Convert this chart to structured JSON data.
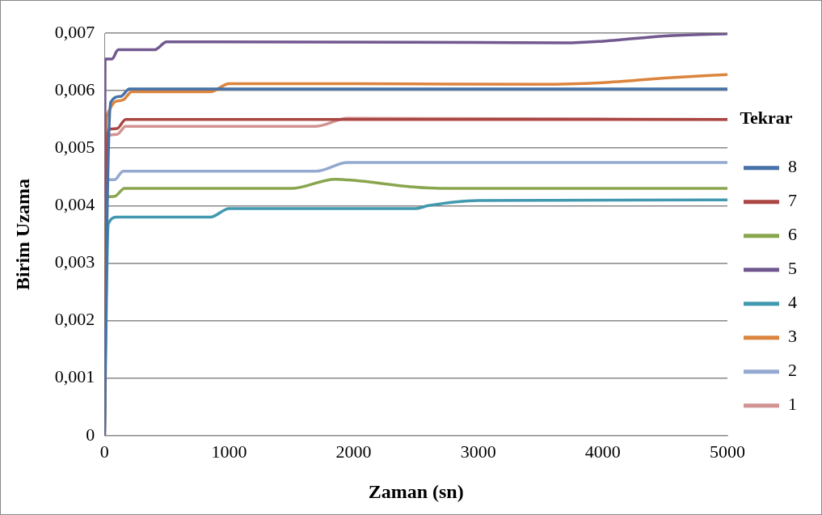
{
  "chart_data": {
    "type": "line",
    "xlabel": "Zaman (sn)",
    "ylabel": "Birim Uzama",
    "legend_title": "Tekrar",
    "legend": "right",
    "grid": "y",
    "marker": "none",
    "line_style": "solid",
    "xlim": [
      0,
      5000
    ],
    "xticks": [
      0,
      1000,
      2000,
      3000,
      4000,
      5000
    ],
    "ylim": [
      0,
      0.007
    ],
    "yticks": [
      0,
      {
        "value": 0.001,
        "label": "0,001"
      },
      {
        "value": 0.002,
        "label": "0,002"
      },
      {
        "value": 0.003,
        "label": "0,003"
      },
      {
        "value": 0.004,
        "label": "0,004"
      },
      {
        "value": 0.005,
        "label": "0,005"
      },
      {
        "value": 0.006,
        "label": "0,006"
      },
      {
        "value": 0.007,
        "label": "0,007"
      }
    ],
    "series": [
      {
        "name": "8",
        "color": "#4672a8",
        "x": [
          0,
          20,
          50,
          130,
          200,
          5000
        ],
        "values": [
          0,
          0.0037,
          0.0058,
          0.0059,
          0.00603,
          0.00603
        ]
      },
      {
        "name": "7",
        "color": "#aa4643",
        "x": [
          0,
          20,
          40,
          100,
          170,
          5000
        ],
        "values": [
          0,
          0.0049,
          0.00533,
          0.00534,
          0.0055,
          0.0055
        ]
      },
      {
        "name": "6",
        "color": "#89a54e",
        "x": [
          0,
          15,
          80,
          160,
          1500,
          1850,
          2000,
          2500,
          2700,
          5000
        ],
        "values": [
          0,
          0.00415,
          0.00416,
          0.0043,
          0.0043,
          0.00446,
          0.00444,
          0.00432,
          0.0043,
          0.0043
        ]
      },
      {
        "name": "5",
        "color": "#71588f",
        "x": [
          0,
          5,
          60,
          110,
          400,
          500,
          3000,
          3700,
          4000,
          4500,
          5000
        ],
        "values": [
          0,
          0.00655,
          0.00655,
          0.00671,
          0.00671,
          0.00685,
          0.00684,
          0.00683,
          0.00686,
          0.00695,
          0.00699
        ]
      },
      {
        "name": "4",
        "color": "#4198af",
        "x": [
          0,
          30,
          100,
          850,
          1000,
          2500,
          2600,
          3000,
          5000
        ],
        "values": [
          0,
          0.00368,
          0.0038,
          0.0038,
          0.00395,
          0.00395,
          0.004,
          0.00409,
          0.0041
        ]
      },
      {
        "name": "3",
        "color": "#db843d",
        "x": [
          0,
          10,
          25,
          80,
          150,
          220,
          850,
          1000,
          2000,
          3500,
          4000,
          4500,
          5000
        ],
        "values": [
          0,
          0.0052,
          0.0056,
          0.0058,
          0.00584,
          0.00598,
          0.00598,
          0.00612,
          0.00612,
          0.00611,
          0.00614,
          0.00622,
          0.00628
        ]
      },
      {
        "name": "2",
        "color": "#93a9cf",
        "x": [
          0,
          15,
          80,
          150,
          1700,
          1950,
          5000
        ],
        "values": [
          0,
          0.00445,
          0.00445,
          0.0046,
          0.0046,
          0.00475,
          0.00475
        ]
      },
      {
        "name": "1",
        "color": "#d19392",
        "x": [
          0,
          10,
          100,
          170,
          1700,
          1950,
          5000
        ],
        "values": [
          0,
          0.0052,
          0.00524,
          0.00538,
          0.00538,
          0.00552,
          0.0055
        ]
      }
    ]
  }
}
